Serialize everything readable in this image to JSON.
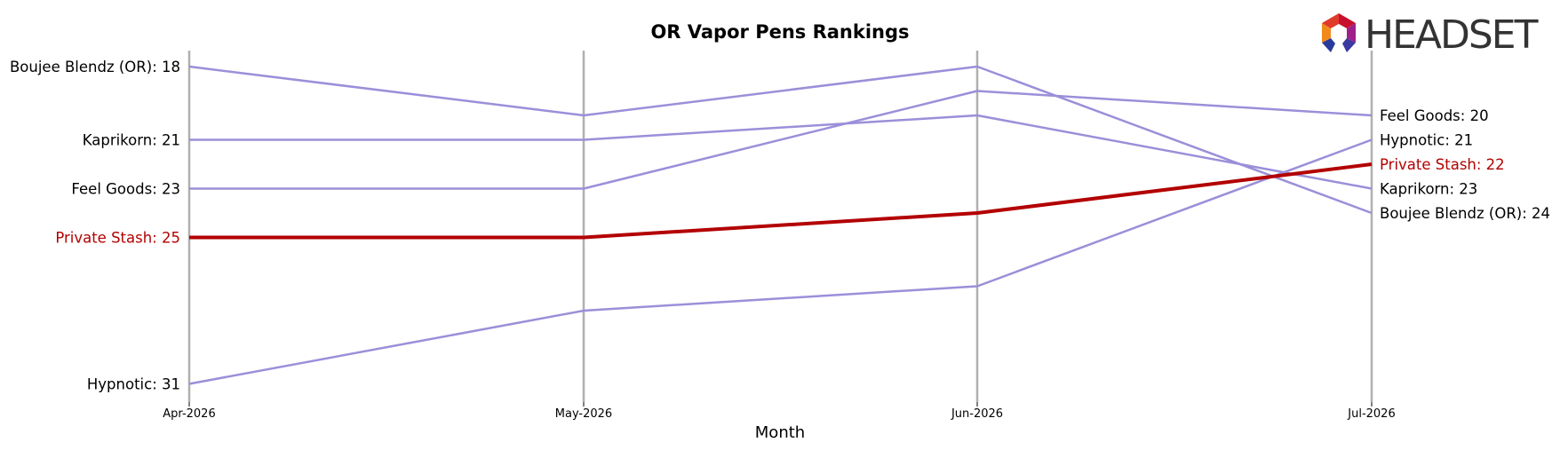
{
  "chart_data": {
    "type": "line",
    "title": "OR Vapor Pens Rankings",
    "xlabel": "Month",
    "ylabel": "",
    "categories": [
      "Apr-2026",
      "May-2026",
      "Jun-2026",
      "Jul-2026"
    ],
    "y_inverted": true,
    "ylim": [
      17.4,
      31.8
    ],
    "series": [
      {
        "name": "Boujee Blendz (OR)",
        "values": [
          18,
          20,
          18,
          24
        ],
        "highlight": false
      },
      {
        "name": "Kaprikorn",
        "values": [
          21,
          21,
          20,
          23
        ],
        "highlight": false
      },
      {
        "name": "Feel Goods",
        "values": [
          23,
          23,
          19,
          20
        ],
        "highlight": false
      },
      {
        "name": "Private Stash",
        "values": [
          25,
          25,
          24,
          22
        ],
        "highlight": true
      },
      {
        "name": "Hypnotic",
        "values": [
          31,
          28,
          27,
          21
        ],
        "highlight": false
      }
    ],
    "colors": {
      "normal": "#9b8fd9",
      "highlight": "#b30000",
      "gridline": "#b0b0b0"
    },
    "grid": "vertical"
  },
  "logo": {
    "text": "HEADSET",
    "icon": "headset-hexagon-icon"
  }
}
